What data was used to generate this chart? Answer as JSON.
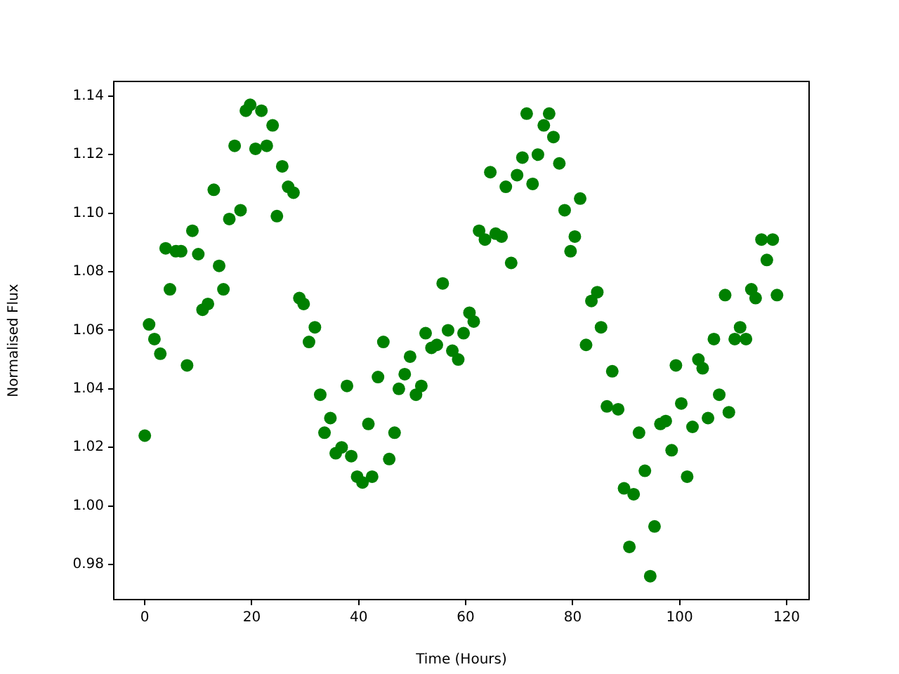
{
  "chart_data": {
    "type": "scatter",
    "xlabel": "Time (Hours)",
    "ylabel": "Normalised Flux",
    "xlim": [
      -5.8,
      124.2
    ],
    "ylim": [
      0.968,
      1.145
    ],
    "xticks": [
      0,
      20,
      40,
      60,
      80,
      100,
      120
    ],
    "yticks": [
      0.98,
      {
        "value": 1.0,
        "label": "1.00"
      },
      1.02,
      1.04,
      1.06,
      1.08,
      {
        "value": 1.1,
        "label": "1.10"
      },
      1.12,
      1.14
    ],
    "marker": "circle",
    "series": [
      {
        "color": "#008000",
        "x": [
          0,
          0.8,
          1.8,
          2.9,
          3.9,
          4.7,
          5.8,
          6.8,
          7.9,
          8.9,
          10.0,
          10.8,
          11.8,
          12.9,
          13.9,
          14.7,
          15.8,
          16.8,
          17.9,
          18.9,
          19.7,
          20.7,
          21.8,
          22.8,
          23.9,
          24.7,
          25.7,
          26.8,
          27.8,
          28.9,
          29.7,
          30.7,
          31.8,
          32.8,
          33.6,
          34.7,
          35.7,
          36.8,
          37.8,
          38.6,
          39.7,
          40.7,
          41.8,
          42.5,
          43.6,
          44.6,
          45.7,
          46.7,
          47.5,
          48.6,
          49.6,
          50.7,
          51.7,
          52.5,
          53.6,
          54.6,
          55.7,
          56.7,
          57.5,
          58.6,
          59.6,
          60.7,
          61.5,
          62.5,
          63.6,
          64.6,
          65.6,
          66.7,
          67.5,
          68.5,
          69.6,
          70.6,
          71.4,
          72.5,
          73.5,
          74.6,
          75.6,
          76.4,
          77.5,
          78.5,
          79.6,
          80.4,
          81.4,
          82.5,
          83.5,
          84.6,
          85.3,
          86.4,
          87.4,
          88.5,
          89.6,
          90.6,
          91.4,
          92.4,
          93.5,
          94.5,
          95.3,
          96.4,
          97.4,
          98.5,
          99.3,
          100.3,
          101.4,
          102.4,
          103.5,
          104.3,
          105.3,
          106.4,
          107.4,
          108.5,
          109.2,
          110.3,
          111.3,
          112.4,
          113.4,
          114.2,
          115.3,
          116.3,
          117.4,
          118.2
        ],
        "values": [
          1.024,
          1.062,
          1.057,
          1.052,
          1.088,
          1.074,
          1.087,
          1.087,
          1.048,
          1.094,
          1.086,
          1.067,
          1.069,
          1.108,
          1.082,
          1.074,
          1.098,
          1.123,
          1.101,
          1.135,
          1.137,
          1.122,
          1.135,
          1.123,
          1.13,
          1.099,
          1.116,
          1.109,
          1.107,
          1.071,
          1.069,
          1.056,
          1.061,
          1.038,
          1.025,
          1.03,
          1.018,
          1.02,
          1.041,
          1.017,
          1.01,
          1.008,
          1.028,
          1.01,
          1.044,
          1.056,
          1.016,
          1.025,
          1.04,
          1.045,
          1.051,
          1.038,
          1.041,
          1.059,
          1.054,
          1.055,
          1.076,
          1.06,
          1.053,
          1.05,
          1.059,
          1.066,
          1.063,
          1.094,
          1.091,
          1.114,
          1.093,
          1.092,
          1.109,
          1.083,
          1.113,
          1.119,
          1.134,
          1.11,
          1.12,
          1.13,
          1.134,
          1.126,
          1.117,
          1.101,
          1.087,
          1.092,
          1.105,
          1.055,
          1.07,
          1.073,
          1.061,
          1.034,
          1.046,
          1.033,
          1.006,
          0.986,
          1.004,
          1.025,
          1.012,
          0.976,
          0.993,
          1.028,
          1.029,
          1.019,
          1.048,
          1.035,
          1.01,
          1.027,
          1.05,
          1.047,
          1.03,
          1.057,
          1.038,
          1.072,
          1.032,
          1.057,
          1.061,
          1.057,
          1.074,
          1.071,
          1.091,
          1.084,
          1.091,
          1.072
        ]
      }
    ]
  }
}
